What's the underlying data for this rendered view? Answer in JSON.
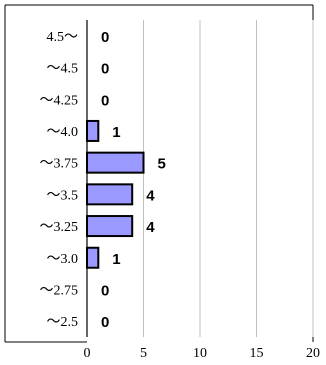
{
  "chart_data": {
    "type": "bar",
    "orientation": "horizontal",
    "categories": [
      "4.5～",
      "～4.5",
      "～4.25",
      "～4.0",
      "～3.75",
      "～3.5",
      "～3.25",
      "～3.0",
      "～2.75",
      "～2.5"
    ],
    "values": [
      0,
      0,
      0,
      1,
      5,
      4,
      4,
      1,
      0,
      0
    ],
    "data_labels": [
      "0",
      "0",
      "0",
      "1",
      "5",
      "4",
      "4",
      "1",
      "0",
      "0"
    ],
    "x_ticks": [
      0,
      5,
      10,
      15,
      20
    ],
    "x_tick_labels": [
      "0",
      "5",
      "10",
      "15",
      "20"
    ],
    "xlim": [
      0,
      20
    ],
    "title": "",
    "xlabel": "",
    "ylabel": "",
    "grid": "vertical",
    "legend": "none",
    "bar_color": "#9999ff",
    "bar_edge_color": "#000000",
    "grid_color": "#c0c0c0",
    "frame_color": "#000000"
  }
}
